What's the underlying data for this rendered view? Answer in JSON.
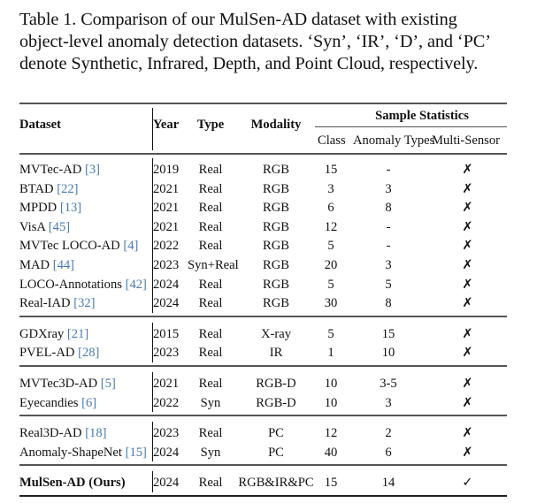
{
  "caption": {
    "lines": [
      "Table 1.  Comparison of our MulSen-AD dataset with existing",
      "object-level anomaly detection datasets. ‘Syn’, ‘IR’, ‘D’, and ‘PC’",
      "denote Synthetic, Infrared, Depth, and Point Cloud, respectively."
    ]
  },
  "table": {
    "headers": {
      "dataset": "Dataset",
      "year": "Year",
      "type": "Type",
      "modality": "Modality",
      "group": "Sample Statistics",
      "class": "Class",
      "anomaly_types": "Anomaly Types",
      "multi_sensor": "Multi-Sensor"
    },
    "rows": [
      {
        "name": "MVTec-AD",
        "cite": "[3]",
        "year": "2019",
        "type": "Real",
        "modality": "RGB",
        "class": "15",
        "anomaly_types": "-",
        "multi_sensor": "✗"
      },
      {
        "name": "BTAD",
        "cite": "[22]",
        "year": "2021",
        "type": "Real",
        "modality": "RGB",
        "class": "3",
        "anomaly_types": "3",
        "multi_sensor": "✗"
      },
      {
        "name": "MPDD",
        "cite": "[13]",
        "year": "2021",
        "type": "Real",
        "modality": "RGB",
        "class": "6",
        "anomaly_types": "8",
        "multi_sensor": "✗"
      },
      {
        "name": "VisA",
        "cite": "[45]",
        "year": "2021",
        "type": "Real",
        "modality": "RGB",
        "class": "12",
        "anomaly_types": "-",
        "multi_sensor": "✗"
      },
      {
        "name": "MVTec LOCO-AD",
        "cite": "[4]",
        "year": "2022",
        "type": "Real",
        "modality": "RGB",
        "class": "5",
        "anomaly_types": "-",
        "multi_sensor": "✗"
      },
      {
        "name": "MAD",
        "cite": "[44]",
        "year": "2023",
        "type": "Syn+Real",
        "modality": "RGB",
        "class": "20",
        "anomaly_types": "3",
        "multi_sensor": "✗"
      },
      {
        "name": "LOCO-Annotations",
        "cite": "[42]",
        "year": "2024",
        "type": "Real",
        "modality": "RGB",
        "class": "5",
        "anomaly_types": "5",
        "multi_sensor": "✗"
      },
      {
        "name": "Real-IAD",
        "cite": "[32]",
        "year": "2024",
        "type": "Real",
        "modality": "RGB",
        "class": "30",
        "anomaly_types": "8",
        "multi_sensor": "✗"
      },
      {
        "name": "GDXray",
        "cite": "[21]",
        "year": "2015",
        "type": "Real",
        "modality": "X-ray",
        "class": "5",
        "anomaly_types": "15",
        "multi_sensor": "✗"
      },
      {
        "name": "PVEL-AD",
        "cite": "[28]",
        "year": "2023",
        "type": "Real",
        "modality": "IR",
        "class": "1",
        "anomaly_types": "10",
        "multi_sensor": "✗"
      },
      {
        "name": "MVTec3D-AD",
        "cite": "[5]",
        "year": "2021",
        "type": "Real",
        "modality": "RGB-D",
        "class": "10",
        "anomaly_types": "3-5",
        "multi_sensor": "✗"
      },
      {
        "name": "Eyecandies",
        "cite": "[6]",
        "year": "2022",
        "type": "Syn",
        "modality": "RGB-D",
        "class": "10",
        "anomaly_types": "3",
        "multi_sensor": "✗"
      },
      {
        "name": "Real3D-AD",
        "cite": "[18]",
        "year": "2023",
        "type": "Real",
        "modality": "PC",
        "class": "12",
        "anomaly_types": "2",
        "multi_sensor": "✗"
      },
      {
        "name": "Anomaly-ShapeNet",
        "cite": "[15]",
        "year": "2024",
        "type": "Syn",
        "modality": "PC",
        "class": "40",
        "anomaly_types": "6",
        "multi_sensor": "✗"
      },
      {
        "name": "MulSen-AD (Ours)",
        "cite": "",
        "year": "2024",
        "type": "Real",
        "modality": "RGB&IR&PC",
        "class": "15",
        "anomaly_types": "14",
        "multi_sensor": "✓"
      }
    ]
  }
}
